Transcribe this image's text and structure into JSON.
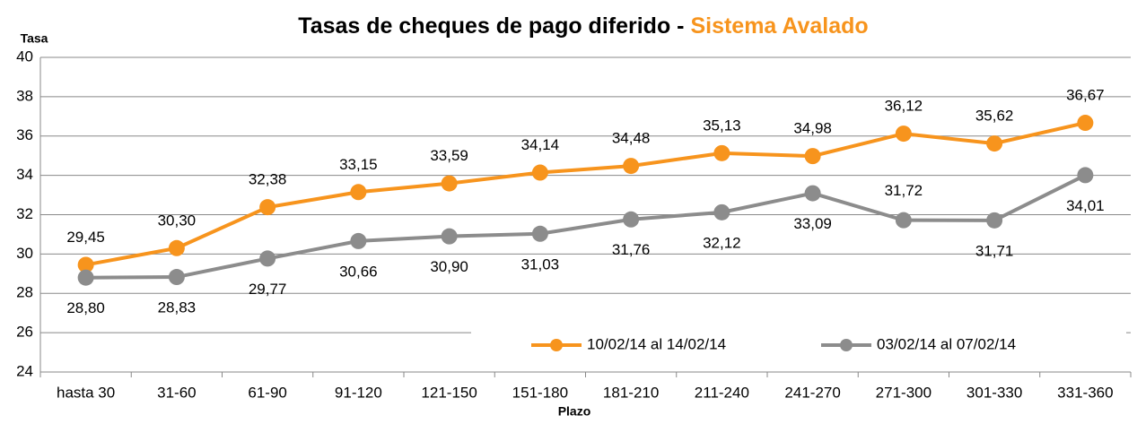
{
  "chart_data": {
    "type": "line",
    "title": "Tasas de cheques de pago diferido -",
    "title_highlight": "Sistema Avalado",
    "y_label": "Tasa",
    "x_label": "Plazo",
    "categories": [
      "hasta 30",
      "31-60",
      "61-90",
      "91-120",
      "121-150",
      "151-180",
      "181-210",
      "211-240",
      "241-270",
      "271-300",
      "301-330",
      "331-360"
    ],
    "series": [
      {
        "name": "10/02/14 al 14/02/14",
        "color": "#f7941d",
        "values": [
          29.45,
          30.3,
          32.38,
          33.15,
          33.59,
          34.14,
          34.48,
          35.13,
          34.98,
          36.12,
          35.62,
          36.67
        ],
        "value_labels": [
          "29,45",
          "30,30",
          "32,38",
          "33,15",
          "33,59",
          "34,14",
          "34,48",
          "35,13",
          "34,98",
          "36,12",
          "35,62",
          "36,67"
        ]
      },
      {
        "name": "03/02/14 al 07/02/14",
        "color": "#8c8c8c",
        "values": [
          28.8,
          28.83,
          29.77,
          30.66,
          30.9,
          31.03,
          31.76,
          32.12,
          33.09,
          31.72,
          31.71,
          34.01
        ],
        "value_labels": [
          "28,80",
          "28,83",
          "29,77",
          "30,66",
          "30,90",
          "31,03",
          "31,76",
          "32,12",
          "33,09",
          "31,72",
          "31,71",
          "34,01"
        ]
      }
    ],
    "ylim": [
      24,
      40
    ],
    "yticks": [
      24,
      26,
      28,
      30,
      32,
      34,
      36,
      38,
      40
    ],
    "grid": true,
    "legend": "bottom-right"
  }
}
